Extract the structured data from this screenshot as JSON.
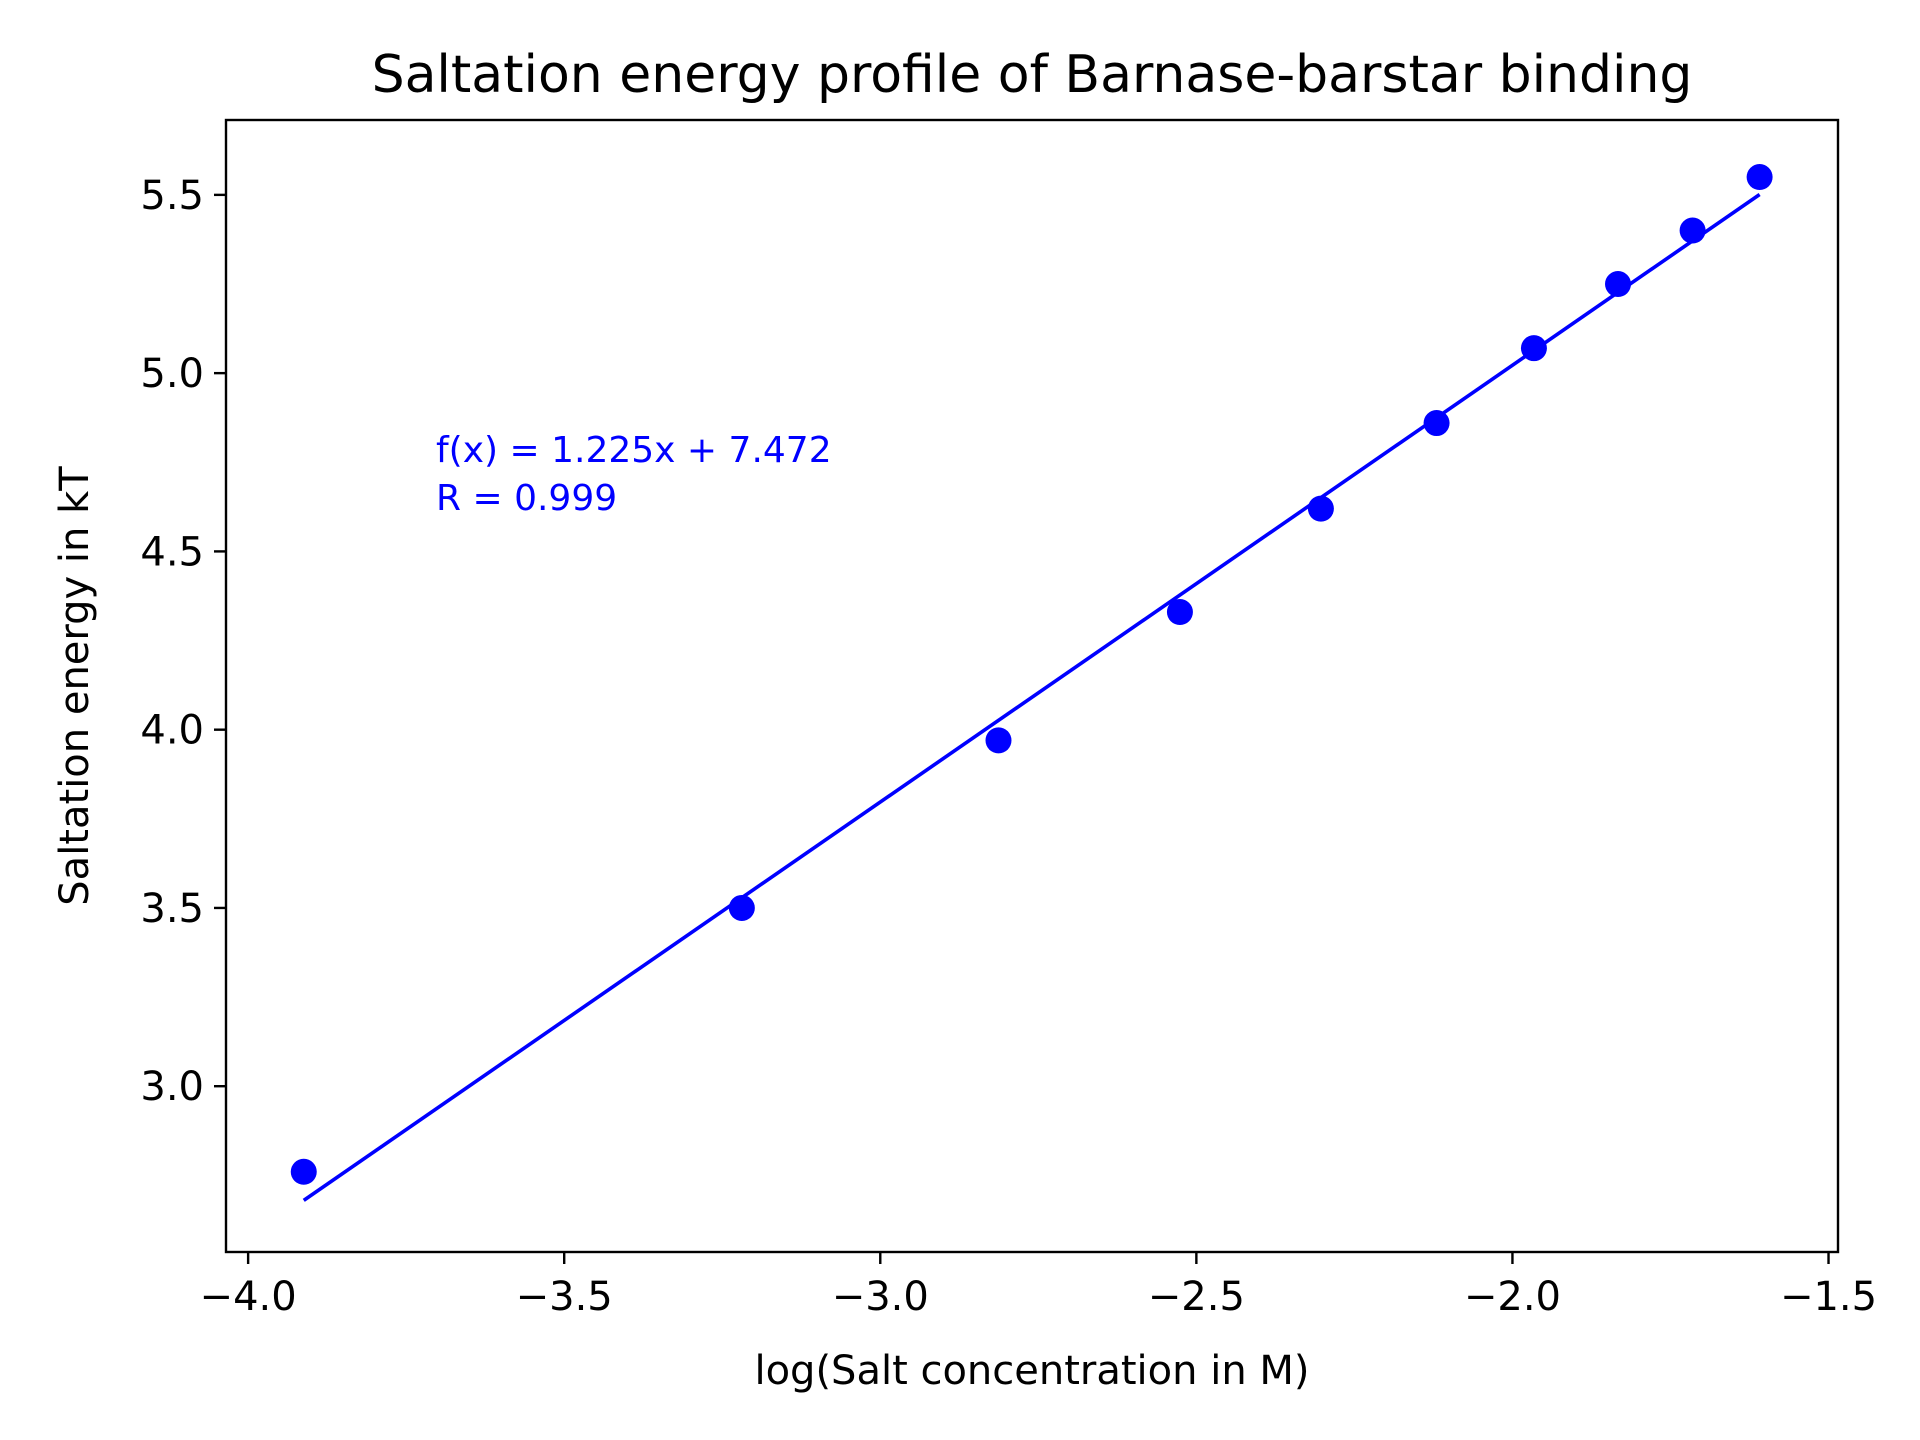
{
  "chart_data": {
    "type": "scatter",
    "title": "Saltation energy profile of Barnase-barstar binding",
    "xlabel": "log(Salt concentration in M)",
    "ylabel": "Saltation energy in kT",
    "xlim": [
      -4.035,
      -1.485
    ],
    "ylim": [
      2.535,
      5.71
    ],
    "x_ticks": [
      -4.0,
      -3.5,
      -3.0,
      -2.5,
      -2.0,
      -1.5
    ],
    "x_tick_labels": [
      "−4.0",
      "−3.5",
      "−3.0",
      "−2.5",
      "−2.0",
      "−1.5"
    ],
    "y_ticks": [
      3.0,
      3.5,
      4.0,
      4.5,
      5.0,
      5.5
    ],
    "y_tick_labels": [
      "3.0",
      "3.5",
      "4.0",
      "4.5",
      "5.0",
      "5.5"
    ],
    "grid": false,
    "color": "#0000ff",
    "series": [
      {
        "kind": "points",
        "x": [
          -3.912,
          -3.219,
          -2.813,
          -2.526,
          -2.303,
          -2.12,
          -1.966,
          -1.833,
          -1.715,
          -1.609
        ],
        "y": [
          2.76,
          3.5,
          3.97,
          4.33,
          4.62,
          4.86,
          5.07,
          5.25,
          5.4,
          5.55
        ]
      },
      {
        "kind": "fit-line",
        "slope": 1.225,
        "intercept": 7.472,
        "x_range": [
          -3.912,
          -1.609
        ]
      }
    ],
    "annotations": [
      "f(x) = 1.225x + 7.472",
      "R = 0.999"
    ]
  }
}
